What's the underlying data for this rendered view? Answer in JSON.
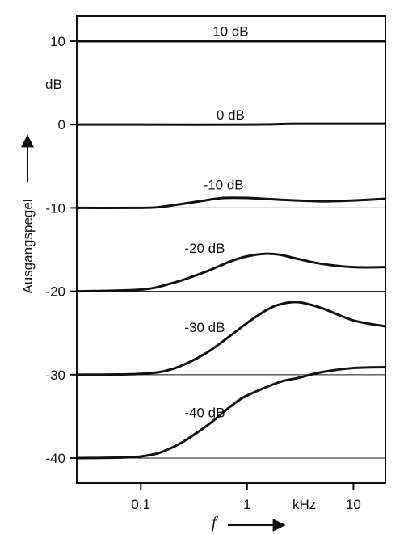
{
  "chart_data": {
    "type": "line",
    "xlabel": "f",
    "x_unit": "kHz",
    "ylabel": "Ausgangspegel",
    "y_unit": "dB",
    "x_scale": "log",
    "xlim": [
      0.025,
      20
    ],
    "ylim": [
      -43,
      13
    ],
    "y_ticks": [
      {
        "value": 10,
        "label": "10"
      },
      {
        "value": 0,
        "label": "0"
      },
      {
        "value": -10,
        "label": "-10"
      },
      {
        "value": -20,
        "label": "-20"
      },
      {
        "value": -30,
        "label": "-30"
      },
      {
        "value": -40,
        "label": "-40"
      }
    ],
    "x_ticks": [
      {
        "value": 0.1,
        "label": "0,1"
      },
      {
        "value": 1,
        "label": "1"
      },
      {
        "value": 10,
        "label": "10"
      }
    ],
    "grid": "horizontal lines at y ticks",
    "series": [
      {
        "name": "10 dB",
        "x": [
          0.025,
          0.1,
          1,
          10,
          20
        ],
        "y": [
          10,
          10,
          10,
          10,
          10
        ]
      },
      {
        "name": "0 dB",
        "x": [
          0.025,
          0.1,
          1,
          3,
          10,
          20
        ],
        "y": [
          0,
          0,
          0,
          0.1,
          0.1,
          0.1
        ]
      },
      {
        "name": "-10 dB",
        "x": [
          0.025,
          0.1,
          0.15,
          0.25,
          0.4,
          0.6,
          1,
          2,
          5,
          10,
          20
        ],
        "y": [
          -10,
          -10,
          -9.9,
          -9.5,
          -9.1,
          -8.8,
          -8.8,
          -9,
          -9.2,
          -9.1,
          -8.9
        ]
      },
      {
        "name": "-20 dB",
        "x": [
          0.025,
          0.1,
          0.2,
          0.4,
          0.7,
          1,
          1.5,
          2,
          3,
          5,
          10,
          20
        ],
        "y": [
          -20,
          -19.8,
          -19,
          -17.7,
          -16.4,
          -15.8,
          -15.5,
          -15.6,
          -16.1,
          -16.7,
          -17.1,
          -17.1
        ]
      },
      {
        "name": "-30 dB",
        "x": [
          0.025,
          0.1,
          0.2,
          0.4,
          0.7,
          1,
          1.5,
          2,
          3,
          5,
          10,
          20
        ],
        "y": [
          -30,
          -29.9,
          -29.3,
          -27.5,
          -25.3,
          -23.8,
          -22.3,
          -21.6,
          -21.3,
          -22,
          -23.5,
          -24.2
        ]
      },
      {
        "name": "-40 dB",
        "x": [
          0.025,
          0.1,
          0.2,
          0.4,
          0.7,
          1,
          2,
          3,
          5,
          10,
          20
        ],
        "y": [
          -40,
          -39.8,
          -38.7,
          -36.3,
          -33.8,
          -32.5,
          -30.9,
          -30.4,
          -29.7,
          -29.2,
          -29.1
        ]
      }
    ],
    "curve_labels": [
      {
        "text": "10 dB",
        "x": 0.7,
        "y": 11.2
      },
      {
        "text": "0 dB",
        "x": 0.7,
        "y": 1.2
      },
      {
        "text": "-10 dB",
        "x": 0.6,
        "y": -7.2
      },
      {
        "text": "-20 dB",
        "x": 0.4,
        "y": -14.8
      },
      {
        "text": "-30 dB",
        "x": 0.4,
        "y": -24.3
      },
      {
        "text": "-40 dB",
        "x": 0.4,
        "y": -34.5
      }
    ]
  }
}
